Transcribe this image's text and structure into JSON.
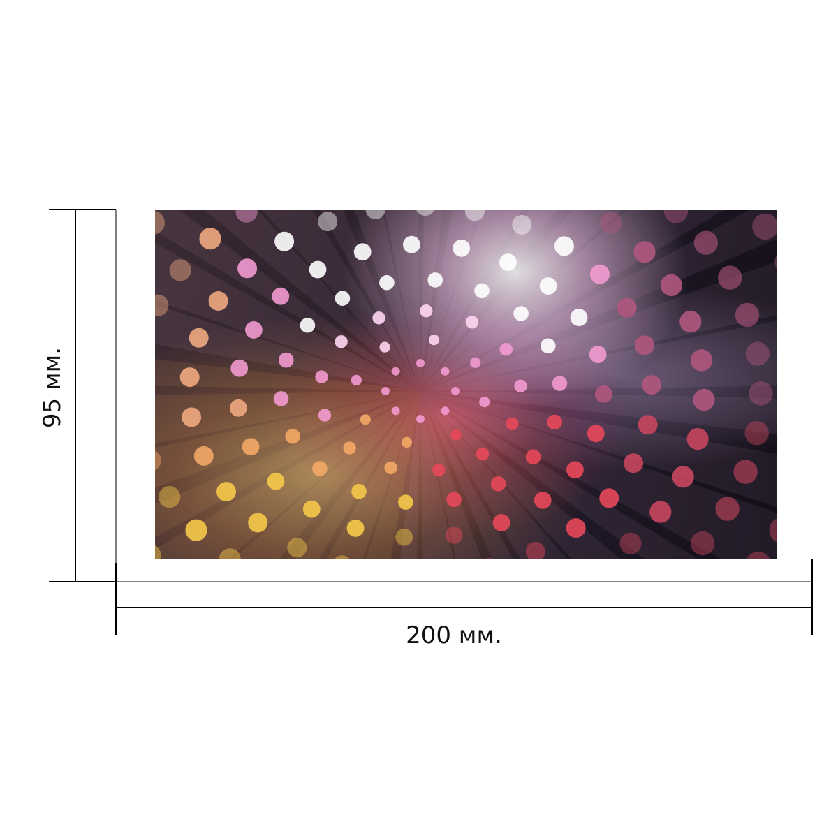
{
  "dimensions": {
    "width_label": "200 мм.",
    "height_label": "95 мм."
  },
  "product": {
    "artwork_image": "bokeh-circles-light-burst",
    "colors": {
      "background_dark": "#1f1826",
      "pink": "#f07ac8",
      "white_glow": "#ffffff",
      "warm_orange": "#f4a055",
      "yellow": "#f5d04b",
      "red": "#e8384f"
    }
  }
}
